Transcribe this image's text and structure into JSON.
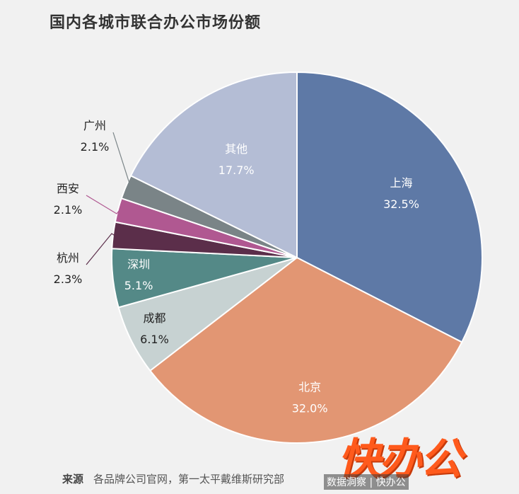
{
  "title": "国内各城市联合办公市场份额",
  "source_label": "来源",
  "source_text": "各品牌公司官网，第一太平戴维斯研究部",
  "watermark": "快办公",
  "watermark_sub": "数据洞察 | 快办公",
  "chart_data": {
    "type": "pie",
    "slices": [
      {
        "name": "上海",
        "value": 32.5,
        "label": "32.5%",
        "color": "#5e79a6",
        "text_color": "#ffffff"
      },
      {
        "name": "北京",
        "value": 32.0,
        "label": "32.0%",
        "color": "#e29673",
        "text_color": "#ffffff"
      },
      {
        "name": "成都",
        "value": 6.1,
        "label": "6.1%",
        "color": "#c7d2d2",
        "text_color": "#222222"
      },
      {
        "name": "深圳",
        "value": 5.1,
        "label": "5.1%",
        "color": "#548987",
        "text_color": "#ffffff"
      },
      {
        "name": "杭州",
        "value": 2.3,
        "label": "2.3%",
        "color": "#5b2e4a",
        "text_color": "#222222"
      },
      {
        "name": "西安",
        "value": 2.1,
        "label": "2.1%",
        "color": "#b05891",
        "text_color": "#222222"
      },
      {
        "name": "广州",
        "value": 2.1,
        "label": "2.1%",
        "color": "#7a8487",
        "text_color": "#222222"
      },
      {
        "name": "其他",
        "value": 17.7,
        "label": "17.7%",
        "color": "#b4bdd5",
        "text_color": "#ffffff"
      }
    ],
    "start_angle_deg": 0,
    "direction": "clockwise"
  }
}
